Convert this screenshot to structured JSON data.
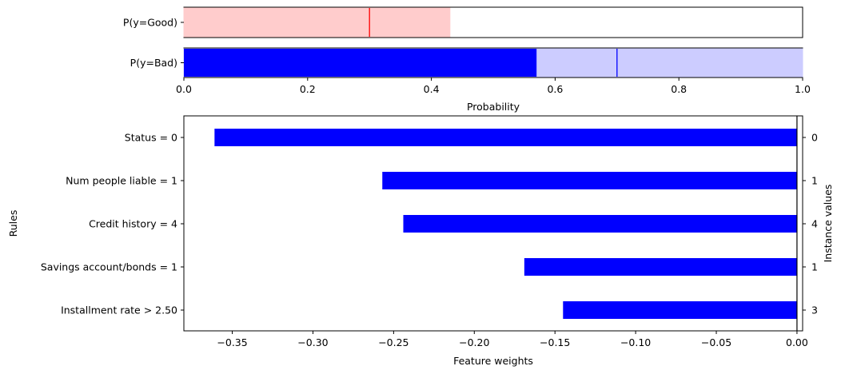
{
  "chart_data": [
    {
      "type": "bar",
      "orientation": "horizontal",
      "categories": [
        "P(y=Good)",
        "P(y=Bad)"
      ],
      "series": [
        {
          "name": "P(y=Good)",
          "interval": [
            0.0,
            0.43
          ],
          "value": 0.0,
          "marker": 0.3,
          "color": "#ff0000"
        },
        {
          "name": "P(y=Bad)",
          "interval": [
            0.0,
            1.0
          ],
          "value": 0.57,
          "marker": 0.7,
          "color": "#0000ff"
        }
      ],
      "xlabel": "Probability",
      "xlim": [
        0.0,
        1.0
      ],
      "xticks": [
        0.0,
        0.2,
        0.4,
        0.6,
        0.8,
        1.0
      ],
      "xtick_labels": [
        "0.0",
        "0.2",
        "0.4",
        "0.6",
        "0.8",
        "1.0"
      ],
      "grid": false
    },
    {
      "type": "bar",
      "orientation": "horizontal",
      "categories": [
        "Status = 0",
        "Num people liable = 1",
        "Credit history = 4",
        "Savings account/bonds = 1",
        "Installment rate > 2.50"
      ],
      "values": [
        -0.361,
        -0.257,
        -0.244,
        -0.169,
        -0.145
      ],
      "instance_values": [
        "0",
        "1",
        "4",
        "1",
        "3"
      ],
      "color": "#0000ff",
      "xlabel": "Feature weights",
      "ylabel": "Rules",
      "y2label": "Instance values",
      "xlim": [
        -0.38,
        0.0035
      ],
      "xticks": [
        -0.35,
        -0.3,
        -0.25,
        -0.2,
        -0.15,
        -0.1,
        -0.05,
        0.0
      ],
      "xtick_labels": [
        "−0.35",
        "−0.30",
        "−0.25",
        "−0.20",
        "−0.15",
        "−0.10",
        "−0.05",
        "0.00"
      ],
      "zero_line": true,
      "grid": false
    }
  ]
}
